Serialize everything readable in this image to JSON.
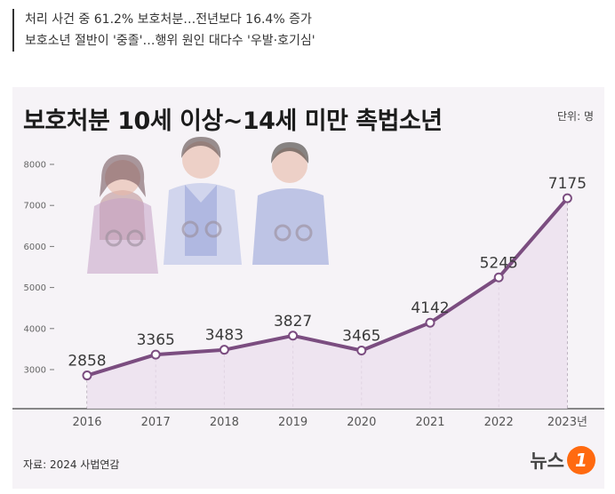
{
  "headlines": [
    "처리 사건 중 61.2% 보호처분…전년보다 16.4% 증가",
    "보호소년 절반이 '중졸'…행위 원인 대다수 '우발·호기심'"
  ],
  "card": {
    "title": "보호처분 10세 이상~14세 미만 촉법소년",
    "unit": "단위: 명",
    "source": "자료: 2024 사법연감",
    "logo_text": "뉴스",
    "logo_mark": "1"
  },
  "colors": {
    "line": "#7b4d80",
    "area": "#ece0ef",
    "background": "#f6f3f7",
    "logo": "#ff6a10"
  },
  "chart_data": {
    "type": "area",
    "title": "보호처분 10세 이상~14세 미만 촉법소년",
    "unit": "단위: 명",
    "categories": [
      "2016",
      "2017",
      "2018",
      "2019",
      "2020",
      "2021",
      "2022",
      "2023년"
    ],
    "values": [
      2858,
      3365,
      3483,
      3827,
      3465,
      4142,
      5245,
      7175
    ],
    "y_ticks": [
      3000,
      4000,
      5000,
      6000,
      7000,
      8000
    ],
    "ylim": [
      2500,
      8300
    ],
    "grid": false
  }
}
